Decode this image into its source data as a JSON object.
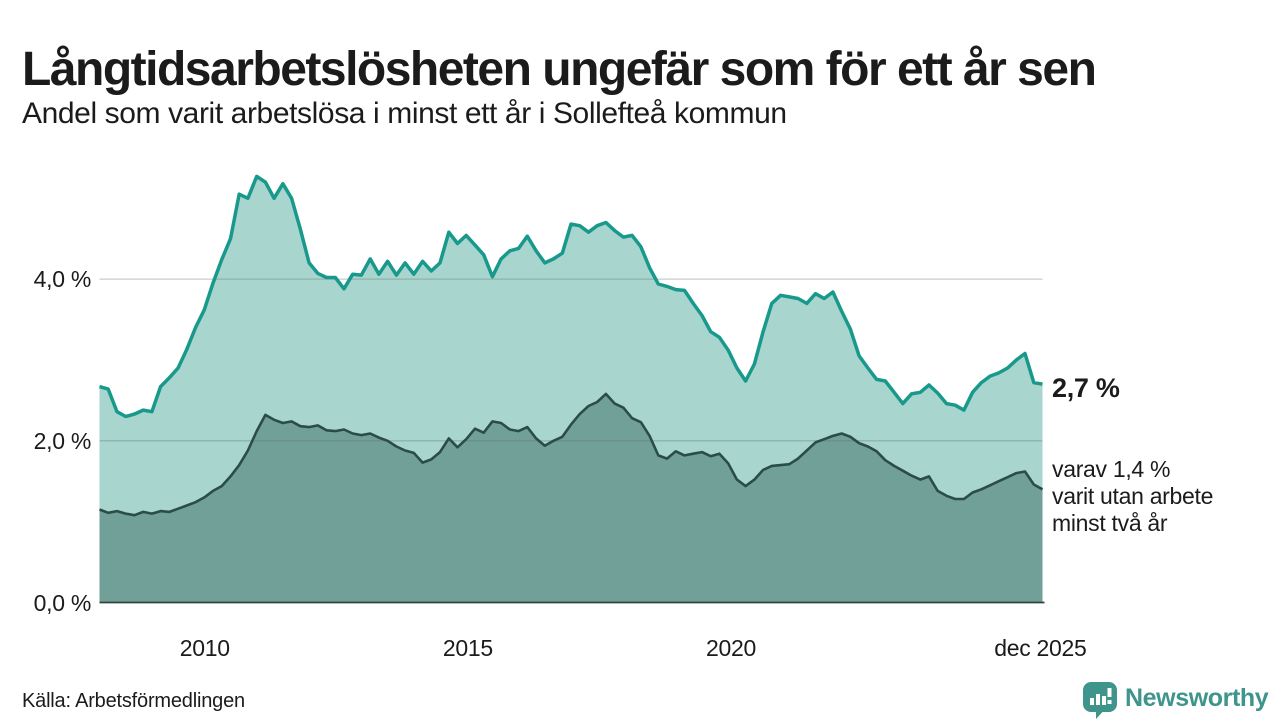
{
  "header": {
    "title": "Långtidsarbetslösheten ungefär som för ett år sen",
    "subtitle": "Andel som varit arbetslösa i minst ett år i Sollefteå kommun"
  },
  "annotations": {
    "end_value_one_year": "2,7 %",
    "note_line1": "varav 1,4 %",
    "note_line2": "varit utan arbete",
    "note_line3": "minst två år"
  },
  "footer": {
    "source": "Källa: Arbetsförmedlingen",
    "brand": "Newsworthy"
  },
  "colors": {
    "text": "#1b1b1b",
    "grid": "rgba(100,110,108,0.35)",
    "axis_line": "#37413f",
    "brand_teal": "#3f948b",
    "background": "#ffffff"
  },
  "chart_data": {
    "type": "area",
    "title": "Långtidsarbetslösheten ungefär som för ett år sen",
    "subtitle": "Andel som varit arbetslösa i minst ett år i Sollefteå kommun",
    "unit": "%",
    "grid": true,
    "legend_position": "right-edge-annotations",
    "x_axis": {
      "min": 2008.0,
      "max": 2025.92,
      "ticks": [
        {
          "t": 2010,
          "label": "2010"
        },
        {
          "t": 2015,
          "label": "2015"
        },
        {
          "t": 2020,
          "label": "2020"
        },
        {
          "t": 2025.88,
          "label": "dec 2025"
        }
      ]
    },
    "y_axis": {
      "min": 0,
      "max": 5.6,
      "ticks": [
        {
          "v": 0,
          "label": "0,0 %"
        },
        {
          "v": 2,
          "label": "2,0 %"
        },
        {
          "v": 4,
          "label": "4,0 %"
        }
      ]
    },
    "series": [
      {
        "id": "one_year",
        "name": "Andel arbetslösa minst ett år",
        "line_color": "#18998b",
        "fill_color": "#a8d6cf",
        "line_width": 3.5,
        "end_value": 2.7,
        "end_label": "2,7 %",
        "values": [
          2.67,
          2.64,
          2.36,
          2.3,
          2.33,
          2.38,
          2.36,
          2.67,
          2.78,
          2.9,
          3.13,
          3.4,
          3.62,
          3.95,
          4.24,
          4.5,
          5.05,
          5.0,
          5.27,
          5.2,
          5.0,
          5.18,
          5.0,
          4.62,
          4.2,
          4.07,
          4.02,
          4.02,
          3.88,
          4.06,
          4.05,
          4.25,
          4.06,
          4.22,
          4.05,
          4.2,
          4.06,
          4.22,
          4.1,
          4.2,
          4.58,
          4.44,
          4.54,
          4.42,
          4.3,
          4.03,
          4.25,
          4.35,
          4.38,
          4.53,
          4.35,
          4.2,
          4.25,
          4.32,
          4.68,
          4.66,
          4.58,
          4.66,
          4.7,
          4.6,
          4.52,
          4.54,
          4.4,
          4.14,
          3.94,
          3.91,
          3.87,
          3.86,
          3.7,
          3.55,
          3.35,
          3.28,
          3.12,
          2.9,
          2.74,
          2.95,
          3.35,
          3.7,
          3.8,
          3.78,
          3.76,
          3.7,
          3.82,
          3.76,
          3.84,
          3.6,
          3.38,
          3.05,
          2.9,
          2.76,
          2.74,
          2.6,
          2.46,
          2.58,
          2.6,
          2.69,
          2.59,
          2.46,
          2.44,
          2.38,
          2.6,
          2.72,
          2.8,
          2.84,
          2.9,
          3.0,
          3.08,
          2.72,
          2.7
        ]
      },
      {
        "id": "two_years",
        "name": "varav varit utan arbete minst två år",
        "line_color": "#2c4d47",
        "fill_color": "#70a098",
        "line_width": 2.6,
        "end_value": 1.4,
        "end_label": "varav 1,4 % varit utan arbete minst två år",
        "values": [
          1.15,
          1.11,
          1.13,
          1.1,
          1.08,
          1.12,
          1.1,
          1.13,
          1.12,
          1.16,
          1.2,
          1.24,
          1.3,
          1.38,
          1.44,
          1.56,
          1.7,
          1.88,
          2.12,
          2.32,
          2.26,
          2.22,
          2.24,
          2.18,
          2.17,
          2.19,
          2.13,
          2.12,
          2.14,
          2.09,
          2.07,
          2.09,
          2.04,
          2.0,
          1.93,
          1.88,
          1.85,
          1.73,
          1.77,
          1.86,
          2.03,
          1.92,
          2.02,
          2.15,
          2.1,
          2.24,
          2.22,
          2.14,
          2.12,
          2.17,
          2.03,
          1.94,
          2.0,
          2.05,
          2.2,
          2.33,
          2.43,
          2.48,
          2.58,
          2.46,
          2.41,
          2.28,
          2.23,
          2.06,
          1.82,
          1.78,
          1.87,
          1.82,
          1.84,
          1.86,
          1.81,
          1.84,
          1.72,
          1.52,
          1.44,
          1.52,
          1.64,
          1.69,
          1.7,
          1.71,
          1.78,
          1.88,
          1.98,
          2.02,
          2.06,
          2.09,
          2.05,
          1.97,
          1.93,
          1.87,
          1.76,
          1.69,
          1.63,
          1.57,
          1.52,
          1.56,
          1.38,
          1.32,
          1.28,
          1.28,
          1.36,
          1.4,
          1.45,
          1.5,
          1.55,
          1.6,
          1.62,
          1.46,
          1.4
        ]
      }
    ]
  }
}
